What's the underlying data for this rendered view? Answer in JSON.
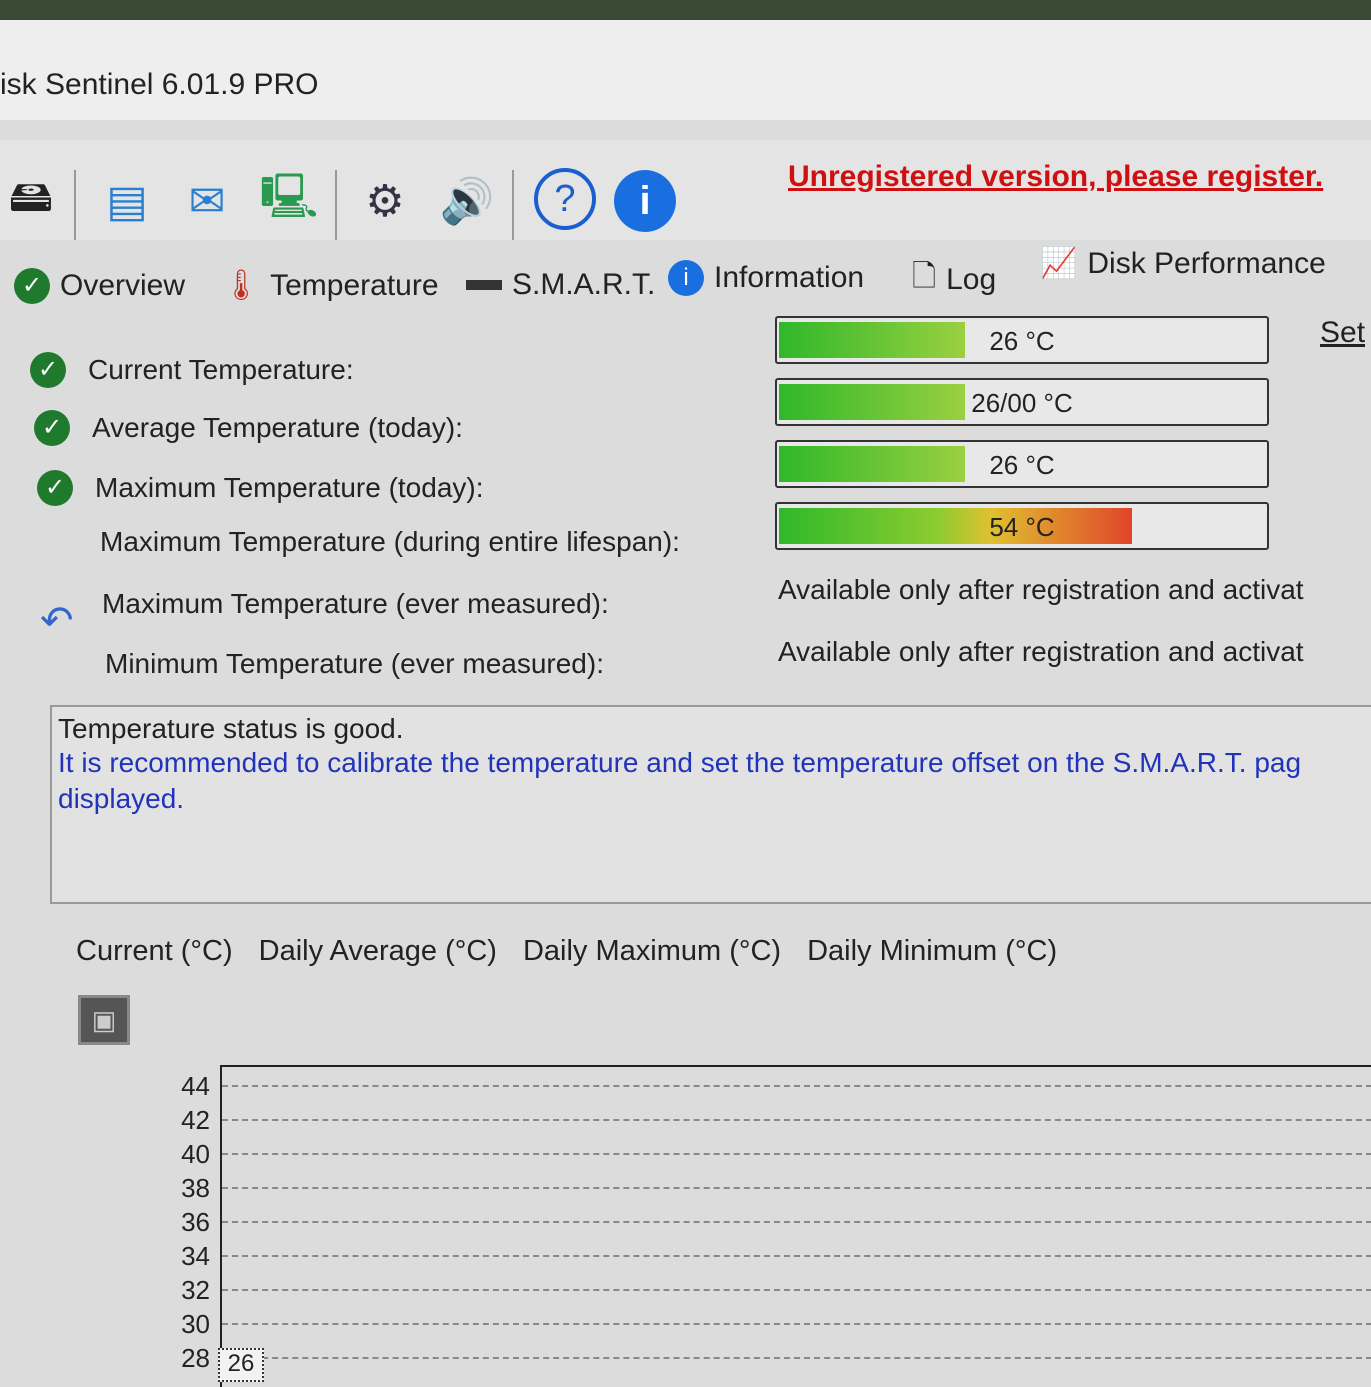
{
  "window": {
    "title": "isk Sentinel 6.01.9 PRO"
  },
  "toolbar": {
    "icons": [
      "disk-drive-icon",
      "report-icon",
      "email-icon",
      "network-icon",
      "settings-gear-icon",
      "sound-icon",
      "help-icon",
      "info-icon"
    ],
    "unregistered_link": "Unregistered version, please register."
  },
  "tabs": [
    {
      "label": "Overview",
      "icon": "green-check-icon"
    },
    {
      "label": "Temperature",
      "icon": "thermometer-icon"
    },
    {
      "label": "S.M.A.R.T.",
      "icon": "disk-icon"
    },
    {
      "label": "Information",
      "icon": "info-icon"
    },
    {
      "label": "Log",
      "icon": "document-icon"
    },
    {
      "label": "Disk Performance",
      "icon": "chart-icon"
    }
  ],
  "set_link": "Set",
  "temperatures": [
    {
      "label": "Current Temperature:",
      "value": "26 °C",
      "status": "good",
      "fill_percent": 38
    },
    {
      "label": "Average Temperature (today):",
      "value": "26/00 °C",
      "status": "good",
      "fill_percent": 38
    },
    {
      "label": "Maximum Temperature (today):",
      "value": "26 °C",
      "status": "good",
      "fill_percent": 38
    },
    {
      "label": "Maximum Temperature (during entire lifespan):",
      "value": "54 °C",
      "fill_percent": 72
    }
  ],
  "restricted": [
    {
      "label": "Maximum Temperature (ever measured):",
      "value": "Available only after registration and activat"
    },
    {
      "label": "Minimum Temperature (ever measured):",
      "value": "Available only after registration and activat"
    }
  ],
  "status": {
    "line1": "Temperature status is good.",
    "line2": "It is recommended to calibrate the temperature and set the temperature offset on the S.M.A.R.T. pag",
    "line3": "displayed."
  },
  "chart_tabs": [
    "Current (°C)",
    "Daily Average (°C)",
    "Daily Maximum (°C)",
    "Daily Minimum (°C)"
  ],
  "chart": {
    "y_ticks": [
      "44",
      "42",
      "40",
      "38",
      "36",
      "34",
      "32",
      "30",
      "28"
    ],
    "current_label": "26"
  },
  "colors": {
    "good": "#1f7a2e",
    "bar_green": "#3cbf2a",
    "bar_red": "#e0452a",
    "link_red": "#d01010",
    "info_blue": "#2233bb"
  }
}
